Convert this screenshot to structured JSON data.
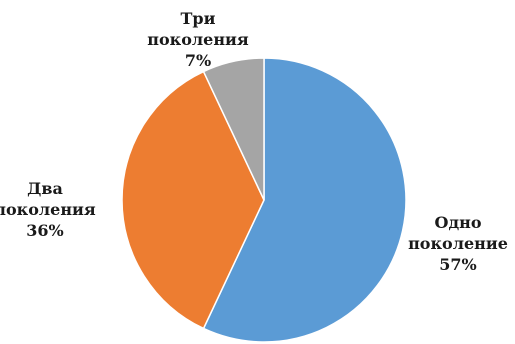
{
  "chart_data": {
    "type": "pie",
    "title": "",
    "slices": [
      {
        "label_lines": [
          "Одно",
          "поколение"
        ],
        "value": 57,
        "value_label": "57%",
        "color": "#5b9bd5"
      },
      {
        "label_lines": [
          "Два",
          "поколения"
        ],
        "value": 36,
        "value_label": "36%",
        "color": "#ed7d31"
      },
      {
        "label_lines": [
          "Три",
          "поколения"
        ],
        "value": 7,
        "value_label": "7%",
        "color": "#a5a5a5"
      }
    ],
    "start_angle_deg": 0,
    "direction": "clockwise",
    "legend": "none"
  }
}
